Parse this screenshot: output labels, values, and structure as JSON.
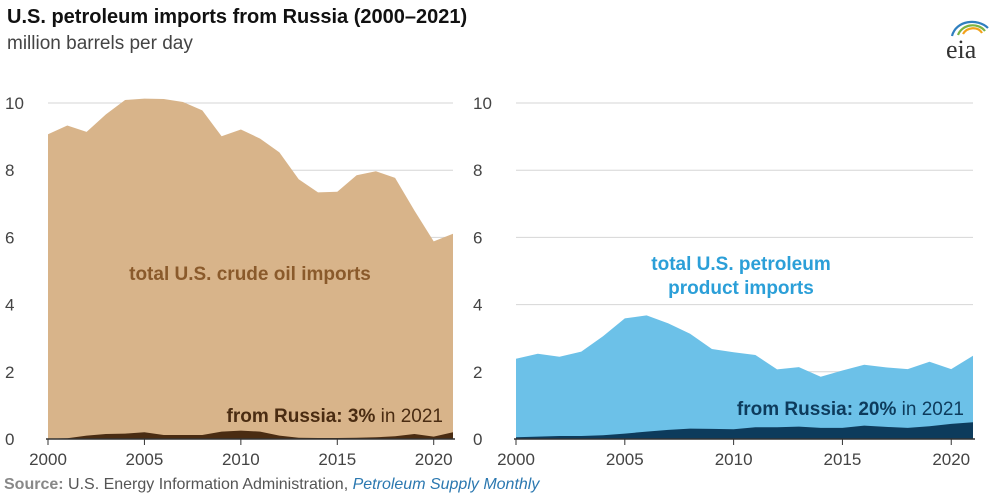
{
  "title": "U.S. petroleum imports from Russia (2000–2021)",
  "subtitle": "million barrels per day",
  "logo_text": "eia",
  "source": {
    "label": "Source:",
    "text": " U.S. Energy Information Administration, ",
    "publication": "Petroleum Supply Monthly"
  },
  "colors": {
    "crude_total": "#d8b48a",
    "crude_russia": "#4a2c12",
    "crude_label": "#8a5a2b",
    "product_total": "#6cc1e8",
    "product_russia": "#0d3b5c",
    "product_label": "#2b9fd8"
  },
  "chart_data": [
    {
      "type": "area",
      "x": [
        2000,
        2001,
        2002,
        2003,
        2004,
        2005,
        2006,
        2007,
        2008,
        2009,
        2010,
        2011,
        2012,
        2013,
        2014,
        2015,
        2016,
        2017,
        2018,
        2019,
        2020,
        2021
      ],
      "series": [
        {
          "values": [
            9.07,
            9.33,
            9.14,
            9.66,
            10.09,
            10.13,
            10.12,
            10.03,
            9.78,
            9.01,
            9.21,
            8.94,
            8.53,
            7.73,
            7.34,
            7.36,
            7.85,
            7.97,
            7.77,
            6.8,
            5.88,
            6.11
          ]
        },
        {
          "values": [
            0.01,
            0.02,
            0.1,
            0.15,
            0.16,
            0.2,
            0.12,
            0.12,
            0.12,
            0.22,
            0.25,
            0.22,
            0.1,
            0.04,
            0.03,
            0.03,
            0.04,
            0.05,
            0.08,
            0.15,
            0.07,
            0.2
          ]
        }
      ],
      "annotations": [
        {
          "text": "total U.S. crude oil imports"
        },
        {
          "prefix": "from Russia: ",
          "emphasis": "3%",
          "suffix": " in 2021"
        }
      ],
      "yticks": [
        0,
        2,
        4,
        6,
        8,
        10
      ],
      "xticks": [
        2000,
        2005,
        2010,
        2015,
        2020
      ],
      "ylim": [
        0,
        10.5
      ],
      "xlim": [
        2000,
        2021
      ],
      "grid": true
    },
    {
      "type": "area",
      "x": [
        2000,
        2001,
        2002,
        2003,
        2004,
        2005,
        2006,
        2007,
        2008,
        2009,
        2010,
        2011,
        2012,
        2013,
        2014,
        2015,
        2016,
        2017,
        2018,
        2019,
        2020,
        2021
      ],
      "series": [
        {
          "values": [
            2.39,
            2.54,
            2.45,
            2.6,
            3.06,
            3.59,
            3.68,
            3.44,
            3.13,
            2.68,
            2.58,
            2.5,
            2.07,
            2.14,
            1.85,
            2.04,
            2.21,
            2.13,
            2.08,
            2.3,
            2.08,
            2.48
          ]
        },
        {
          "values": [
            0.05,
            0.07,
            0.09,
            0.09,
            0.11,
            0.16,
            0.22,
            0.27,
            0.31,
            0.3,
            0.29,
            0.35,
            0.35,
            0.37,
            0.33,
            0.33,
            0.4,
            0.36,
            0.33,
            0.38,
            0.45,
            0.5
          ]
        }
      ],
      "annotations": [
        {
          "text": "total U.S. petroleum product imports",
          "lines": [
            "total U.S. petroleum",
            "product imports"
          ]
        },
        {
          "prefix": "from Russia: ",
          "emphasis": "20%",
          "suffix": " in 2021"
        }
      ],
      "yticks": [
        0,
        2,
        4,
        6,
        8,
        10
      ],
      "xticks": [
        2000,
        2005,
        2010,
        2015,
        2020
      ],
      "ylim": [
        0,
        10.5
      ],
      "xlim": [
        2000,
        2021
      ],
      "grid": true
    }
  ]
}
